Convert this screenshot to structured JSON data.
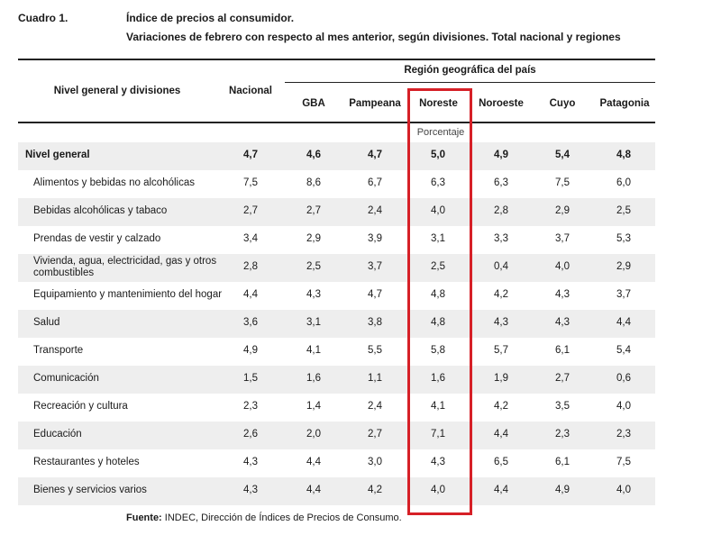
{
  "header": {
    "cuadro": "Cuadro 1.",
    "title_line1": "Índice de precios al consumidor.",
    "title_line2": "Variaciones de febrero con respecto al mes anterior, según divisiones. Total nacional y regiones"
  },
  "columns": {
    "nivel": "Nivel general y divisiones",
    "nacional": "Nacional",
    "region_group": "Región geográfica del país",
    "gba": "GBA",
    "pampeana": "Pampeana",
    "noreste": "Noreste",
    "noroeste": "Noroeste",
    "cuyo": "Cuyo",
    "patagonia": "Patagonia"
  },
  "unit_label": "Porcentaje",
  "highlight_color": "#d62027",
  "rows": [
    {
      "label": "Nivel general",
      "bold": true,
      "values": [
        "4,7",
        "4,6",
        "4,7",
        "5,0",
        "4,9",
        "5,4",
        "4,8"
      ]
    },
    {
      "label": "Alimentos y bebidas no alcohólicas",
      "values": [
        "7,5",
        "8,6",
        "6,7",
        "6,3",
        "6,3",
        "7,5",
        "6,0"
      ]
    },
    {
      "label": "Bebidas alcohólicas y tabaco",
      "values": [
        "2,7",
        "2,7",
        "2,4",
        "4,0",
        "2,8",
        "2,9",
        "2,5"
      ]
    },
    {
      "label": "Prendas de vestir y calzado",
      "values": [
        "3,4",
        "2,9",
        "3,9",
        "3,1",
        "3,3",
        "3,7",
        "5,3"
      ]
    },
    {
      "label_line1": "Vivienda, agua, electricidad, gas y otros",
      "label_line2": "combustibles",
      "values": [
        "2,8",
        "2,5",
        "3,7",
        "2,5",
        "0,4",
        "4,0",
        "2,9"
      ]
    },
    {
      "label": "Equipamiento y mantenimiento del hogar",
      "values": [
        "4,4",
        "4,3",
        "4,7",
        "4,8",
        "4,2",
        "4,3",
        "3,7"
      ]
    },
    {
      "label": "Salud",
      "values": [
        "3,6",
        "3,1",
        "3,8",
        "4,8",
        "4,3",
        "4,3",
        "4,4"
      ]
    },
    {
      "label": "Transporte",
      "values": [
        "4,9",
        "4,1",
        "5,5",
        "5,8",
        "5,7",
        "6,1",
        "5,4"
      ]
    },
    {
      "label": "Comunicación",
      "values": [
        "1,5",
        "1,6",
        "1,1",
        "1,6",
        "1,9",
        "2,7",
        "0,6"
      ]
    },
    {
      "label": "Recreación y cultura",
      "values": [
        "2,3",
        "1,4",
        "2,4",
        "4,1",
        "4,2",
        "3,5",
        "4,0"
      ]
    },
    {
      "label": "Educación",
      "values": [
        "2,6",
        "2,0",
        "2,7",
        "7,1",
        "4,4",
        "2,3",
        "2,3"
      ]
    },
    {
      "label": "Restaurantes y hoteles",
      "values": [
        "4,3",
        "4,4",
        "3,0",
        "4,3",
        "6,5",
        "6,1",
        "7,5"
      ]
    },
    {
      "label": "Bienes y servicios varios",
      "values": [
        "4,3",
        "4,4",
        "4,2",
        "4,0",
        "4,4",
        "4,9",
        "4,0"
      ]
    }
  ],
  "footer": {
    "label": "Fuente:",
    "text": " INDEC, Dirección de Índices de Precios de Consumo."
  }
}
